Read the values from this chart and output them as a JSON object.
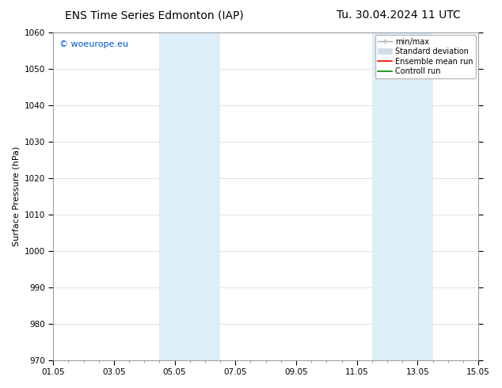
{
  "title_left": "ENS Time Series Edmonton (IAP)",
  "title_right": "Tu. 30.04.2024 11 UTC",
  "ylabel": "Surface Pressure (hPa)",
  "ylim": [
    970,
    1060
  ],
  "yticks": [
    970,
    980,
    990,
    1000,
    1010,
    1020,
    1030,
    1040,
    1050,
    1060
  ],
  "xlim_start": 0,
  "xlim_end": 14,
  "xtick_labels": [
    "01.05",
    "03.05",
    "05.05",
    "07.05",
    "09.05",
    "11.05",
    "13.05",
    "15.05"
  ],
  "xtick_positions": [
    0,
    2,
    4,
    6,
    8,
    10,
    12,
    14
  ],
  "shaded_regions": [
    {
      "x_start": 3.5,
      "x_end": 4.5,
      "color": "#ddeef8"
    },
    {
      "x_start": 4.5,
      "x_end": 5.5,
      "color": "#ddeef8"
    },
    {
      "x_start": 10.5,
      "x_end": 11.5,
      "color": "#ddeef8"
    },
    {
      "x_start": 11.5,
      "x_end": 12.5,
      "color": "#ddeef8"
    }
  ],
  "watermark_text": "© woeurope.eu",
  "watermark_color": "#0055cc",
  "background_color": "#ffffff",
  "plot_bg_color": "#ffffff",
  "legend_items": [
    {
      "label": "min/max",
      "color": "#aaaaaa",
      "lw": 1.0
    },
    {
      "label": "Standard deviation",
      "color": "#d0dde8",
      "lw": 6
    },
    {
      "label": "Ensemble mean run",
      "color": "#ff0000",
      "lw": 1.5
    },
    {
      "label": "Controll run",
      "color": "#008800",
      "lw": 1.5
    }
  ],
  "grid_color": "#dddddd",
  "title_fontsize": 10,
  "axis_fontsize": 8,
  "tick_fontsize": 7.5,
  "legend_fontsize": 7,
  "watermark_fontsize": 8
}
